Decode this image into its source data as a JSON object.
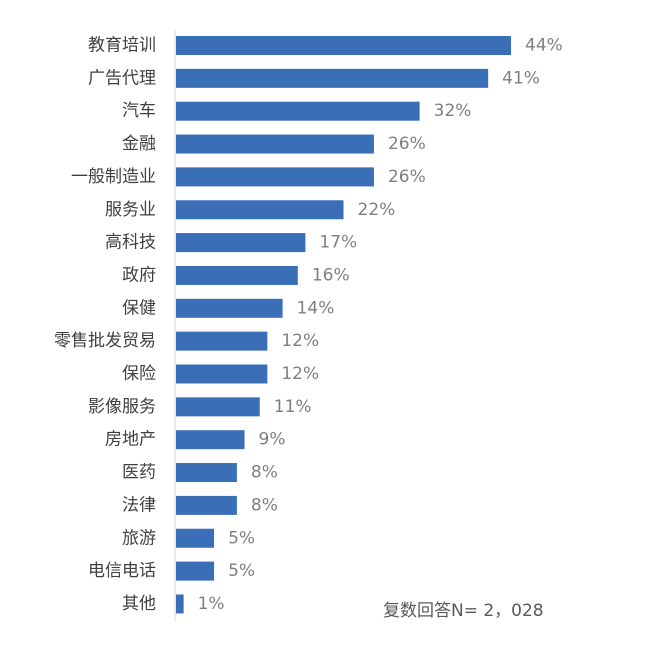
{
  "chart_data": {
    "type": "bar",
    "orientation": "horizontal",
    "categories": [
      "教育培训",
      "广告代理",
      "汽车",
      "金融",
      "一般制造业",
      "服务业",
      "高科技",
      "政府",
      "保健",
      "零售批发贸易",
      "保险",
      "影像服务",
      "房地产",
      "医药",
      "法律",
      "旅游",
      "电信电话",
      "其他"
    ],
    "values": [
      44,
      41,
      32,
      26,
      26,
      22,
      17,
      16,
      14,
      12,
      12,
      11,
      9,
      8,
      8,
      5,
      5,
      1
    ],
    "value_labels": [
      "44%",
      "41%",
      "32%",
      "26%",
      "26%",
      "22%",
      "17%",
      "16%",
      "14%",
      "12%",
      "12%",
      "11%",
      "9%",
      "8%",
      "8%",
      "5%",
      "5%",
      "1%"
    ],
    "unit": "%",
    "xlim": [
      0,
      44
    ],
    "grid": false,
    "bar_color": "#3a6fb8",
    "note": "复数回答N= 2，028"
  }
}
